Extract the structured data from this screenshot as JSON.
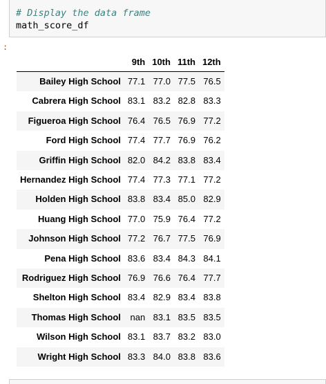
{
  "code_cell": {
    "comment": "# Display the data frame",
    "expression": "math_score_df"
  },
  "output": {
    "prompt": ":"
  },
  "table": {
    "columns": [
      "",
      "9th",
      "10th",
      "11th",
      "12th"
    ],
    "rows": [
      {
        "index": "Bailey High School",
        "values": [
          "77.1",
          "77.0",
          "77.5",
          "76.5"
        ]
      },
      {
        "index": "Cabrera High School",
        "values": [
          "83.1",
          "83.2",
          "82.8",
          "83.3"
        ]
      },
      {
        "index": "Figueroa High School",
        "values": [
          "76.4",
          "76.5",
          "76.9",
          "77.2"
        ]
      },
      {
        "index": "Ford High School",
        "values": [
          "77.4",
          "77.7",
          "76.9",
          "76.2"
        ]
      },
      {
        "index": "Griffin High School",
        "values": [
          "82.0",
          "84.2",
          "83.8",
          "83.4"
        ]
      },
      {
        "index": "Hernandez High School",
        "values": [
          "77.4",
          "77.3",
          "77.1",
          "77.2"
        ]
      },
      {
        "index": "Holden High School",
        "values": [
          "83.8",
          "83.4",
          "85.0",
          "82.9"
        ]
      },
      {
        "index": "Huang High School",
        "values": [
          "77.0",
          "75.9",
          "76.4",
          "77.2"
        ]
      },
      {
        "index": "Johnson High School",
        "values": [
          "77.2",
          "76.7",
          "77.5",
          "76.9"
        ]
      },
      {
        "index": "Pena High School",
        "values": [
          "83.6",
          "83.4",
          "84.3",
          "84.1"
        ]
      },
      {
        "index": "Rodriguez High School",
        "values": [
          "76.9",
          "76.6",
          "76.4",
          "77.7"
        ]
      },
      {
        "index": "Shelton High School",
        "values": [
          "83.4",
          "82.9",
          "83.4",
          "83.8"
        ]
      },
      {
        "index": "Thomas High School",
        "values": [
          "nan",
          "83.1",
          "83.5",
          "83.5"
        ]
      },
      {
        "index": "Wilson High School",
        "values": [
          "83.1",
          "83.7",
          "83.2",
          "83.0"
        ]
      },
      {
        "index": "Wright High School",
        "values": [
          "83.3",
          "84.0",
          "83.8",
          "83.6"
        ]
      }
    ]
  },
  "colors": {
    "comment": "#408080",
    "prompt": "#d84315",
    "cell_bg": "#f7f7f7",
    "stripe": "#f5f5f5"
  }
}
